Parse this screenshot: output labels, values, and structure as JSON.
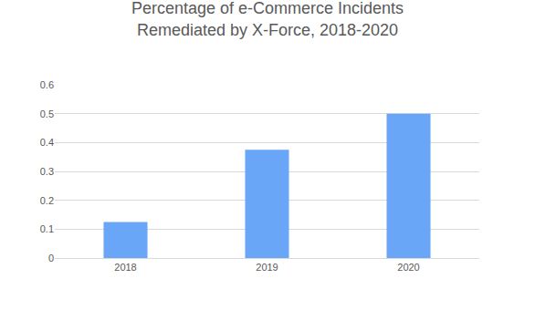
{
  "chart_data": {
    "type": "bar",
    "title": "Percentage of e-Commerce Incidents Remediated by X-Force, 2018-2020",
    "categories": [
      "2018",
      "2019",
      "2020"
    ],
    "values": [
      0.125,
      0.375,
      0.5
    ],
    "color": "#6aa6f8",
    "ylim": [
      0,
      0.6
    ],
    "yticks": [
      0,
      0.1,
      0.2,
      0.3,
      0.4,
      0.5,
      0.6
    ],
    "grid": true
  }
}
